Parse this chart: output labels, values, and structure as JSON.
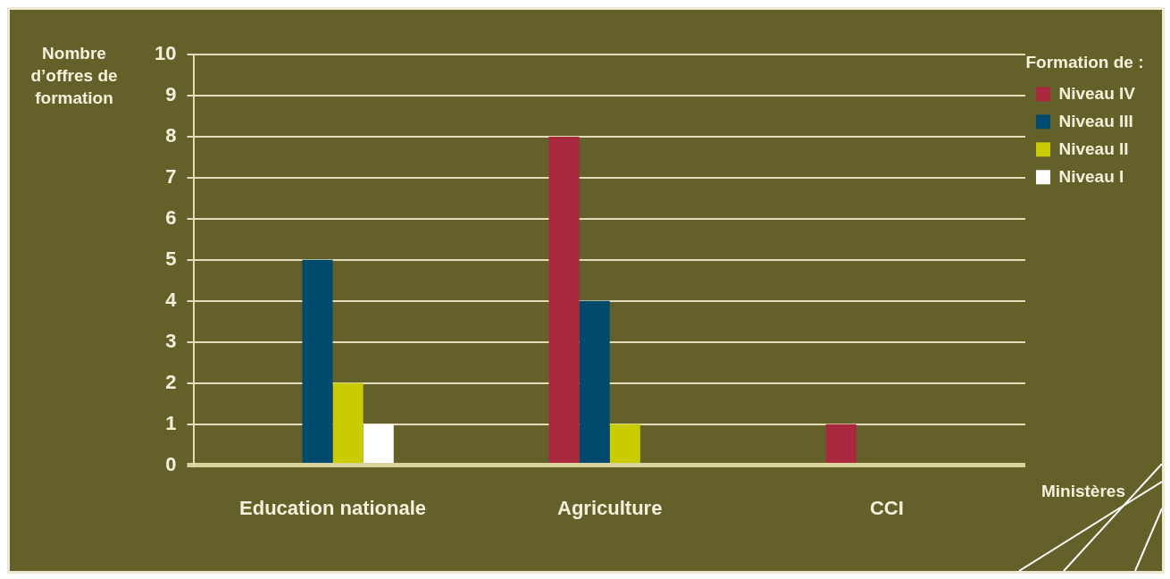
{
  "chart_data": {
    "type": "bar",
    "ylabel": "Nombre d’offres de formation",
    "xlabel": "Ministères",
    "legend_title": "Formation de :",
    "categories": [
      "Education nationale",
      "Agriculture",
      "CCI"
    ],
    "series": [
      {
        "name": "Niveau IV",
        "color": "#a8283e",
        "values": [
          0,
          8,
          1
        ]
      },
      {
        "name": "Niveau III",
        "color": "#004a6e",
        "values": [
          5,
          4,
          0
        ]
      },
      {
        "name": "Niveau II",
        "color": "#c8cc00",
        "values": [
          2,
          1,
          0
        ]
      },
      {
        "name": "Niveau I",
        "color": "#ffffff",
        "values": [
          1,
          0,
          0
        ]
      }
    ],
    "ylim": [
      0,
      10
    ],
    "yticks": [
      0,
      1,
      2,
      3,
      4,
      5,
      6,
      7,
      8,
      9,
      10
    ],
    "grid": "y",
    "legend": "top right"
  }
}
